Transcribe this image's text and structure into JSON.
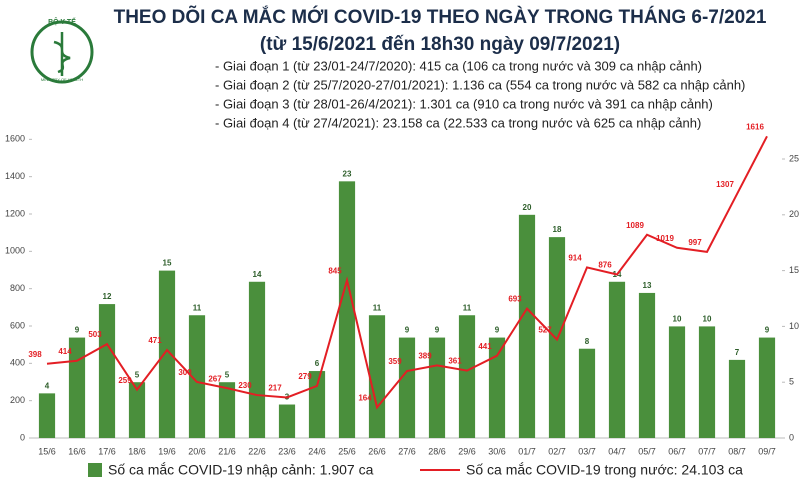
{
  "header": {
    "logo_text": "BỘ Y TẾ",
    "logo_subtext": "MINISTRY OF HEALTH"
  },
  "chart_data": {
    "type": "bar",
    "title": "THEO DÕI CA MẮC MỚI COVID-19 THEO NGÀY TRONG THÁNG 6-7/2021",
    "subtitle": "(từ 15/6/2021 đến 18h30 ngày 09/7/2021)",
    "notes": [
      "- Giai đoạn 1 (từ 23/01-24/7/2020): 415 ca (106 ca trong nước và 309 ca nhập cảnh)",
      "- Giai đoạn 2 (từ 25/7/2020-27/01/2021): 1.136 ca (554 ca trong nước và 582 ca nhập cảnh)",
      "- Giai đoạn 3 (từ 28/01-26/4/2021): 1.301 ca (910 ca trong nước và 391 ca nhập cảnh)",
      "- Giai đoạn 4 (từ 27/4/2021): 23.158 ca (22.533 ca trong nước và 625 ca nhập cảnh)"
    ],
    "categories": [
      "15/6",
      "16/6",
      "17/6",
      "18/6",
      "19/6",
      "20/6",
      "21/6",
      "22/6",
      "23/6",
      "24/6",
      "25/6",
      "26/6",
      "27/6",
      "28/6",
      "29/6",
      "30/6",
      "01/7",
      "02/7",
      "03/7",
      "04/7",
      "05/7",
      "06/7",
      "07/7",
      "08/7",
      "09/7"
    ],
    "series": [
      {
        "name": "Số ca mắc COVID-19 nhập cảnh: 1.907 ca",
        "type": "bar",
        "axis": "y2",
        "color": "#4a8f3c",
        "values": [
          4,
          9,
          12,
          5,
          15,
          11,
          5,
          14,
          3,
          6,
          23,
          11,
          9,
          9,
          11,
          9,
          20,
          18,
          8,
          14,
          13,
          10,
          10,
          7,
          9
        ]
      },
      {
        "name": "Số ca mắc COVID-19 trong nước: 24.103 ca",
        "type": "line",
        "color": "#e31e24",
        "values": [
          398,
          414,
          503,
          259,
          471,
          300,
          267,
          230,
          217,
          279,
          845,
          164,
          359,
          389,
          361,
          441,
          693,
          527,
          914,
          876,
          1089,
          1019,
          997,
          1307,
          1616
        ]
      }
    ],
    "ylim": [
      0,
      1650
    ],
    "yticks": [
      0,
      200,
      400,
      600,
      800,
      1000,
      1200,
      1400,
      1600
    ],
    "y2lim": [
      0,
      27.6
    ],
    "y2ticks": [
      0,
      5,
      10,
      15,
      20,
      25
    ],
    "grid": false
  }
}
